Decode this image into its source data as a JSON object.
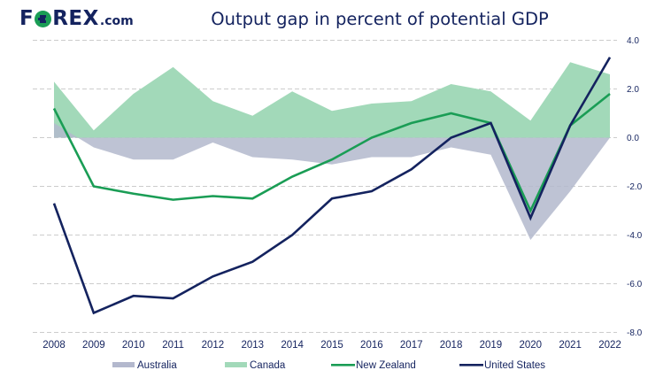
{
  "brand": {
    "logo_prefix": "F",
    "logo_suffix": "REX",
    "logo_domain": ".com",
    "logo_icon": "euro-coin-icon"
  },
  "colors": {
    "australia": "#b3b8cd",
    "canada": "#a2d9b9",
    "new_zealand": "#1a9d55",
    "united_states": "#14235f",
    "text": "#14235f",
    "grid": "#cccccc"
  },
  "chart_data": {
    "type": "area",
    "title": "Output gap in percent of potential GDP",
    "xlabel": "",
    "ylabel": "",
    "categories": [
      "2008",
      "2009",
      "2010",
      "2011",
      "2012",
      "2013",
      "2014",
      "2015",
      "2016",
      "2017",
      "2018",
      "2019",
      "2020",
      "2021",
      "2022"
    ],
    "ylim": [
      -8,
      4
    ],
    "yticks": [
      4,
      2,
      0,
      -2,
      -4,
      -6,
      -8
    ],
    "ytick_labels": [
      "4.0",
      "2.0",
      "0.0",
      "-2.0",
      "-4.0",
      "-6.0",
      "-8.0"
    ],
    "y_axis_side": "right",
    "grid": true,
    "legend_position": "bottom",
    "series": [
      {
        "name": "Australia",
        "kind": "area",
        "color_key": "australia",
        "values": [
          0.6,
          -0.4,
          -0.9,
          -0.9,
          -0.2,
          -0.8,
          -0.9,
          -1.1,
          -0.8,
          -0.8,
          -0.4,
          -0.7,
          -4.2,
          -2.2,
          0.0
        ]
      },
      {
        "name": "Canada",
        "kind": "area",
        "color_key": "canada",
        "values": [
          2.3,
          0.3,
          1.8,
          2.9,
          1.5,
          0.9,
          1.9,
          1.1,
          1.4,
          1.5,
          2.2,
          1.9,
          0.7,
          3.1,
          2.6
        ]
      },
      {
        "name": "New Zealand",
        "kind": "line",
        "color_key": "new_zealand",
        "values": [
          1.2,
          -2.0,
          -2.3,
          -2.55,
          -2.4,
          -2.5,
          -1.6,
          -0.9,
          0.0,
          0.6,
          1.0,
          0.6,
          -3.0,
          0.5,
          1.8
        ]
      },
      {
        "name": "United States",
        "kind": "line",
        "color_key": "united_states",
        "values": [
          -2.7,
          -7.2,
          -6.5,
          -6.6,
          -5.7,
          -5.1,
          -4.0,
          -2.5,
          -2.2,
          -1.3,
          0.0,
          0.6,
          -3.3,
          0.5,
          3.3
        ]
      }
    ]
  }
}
